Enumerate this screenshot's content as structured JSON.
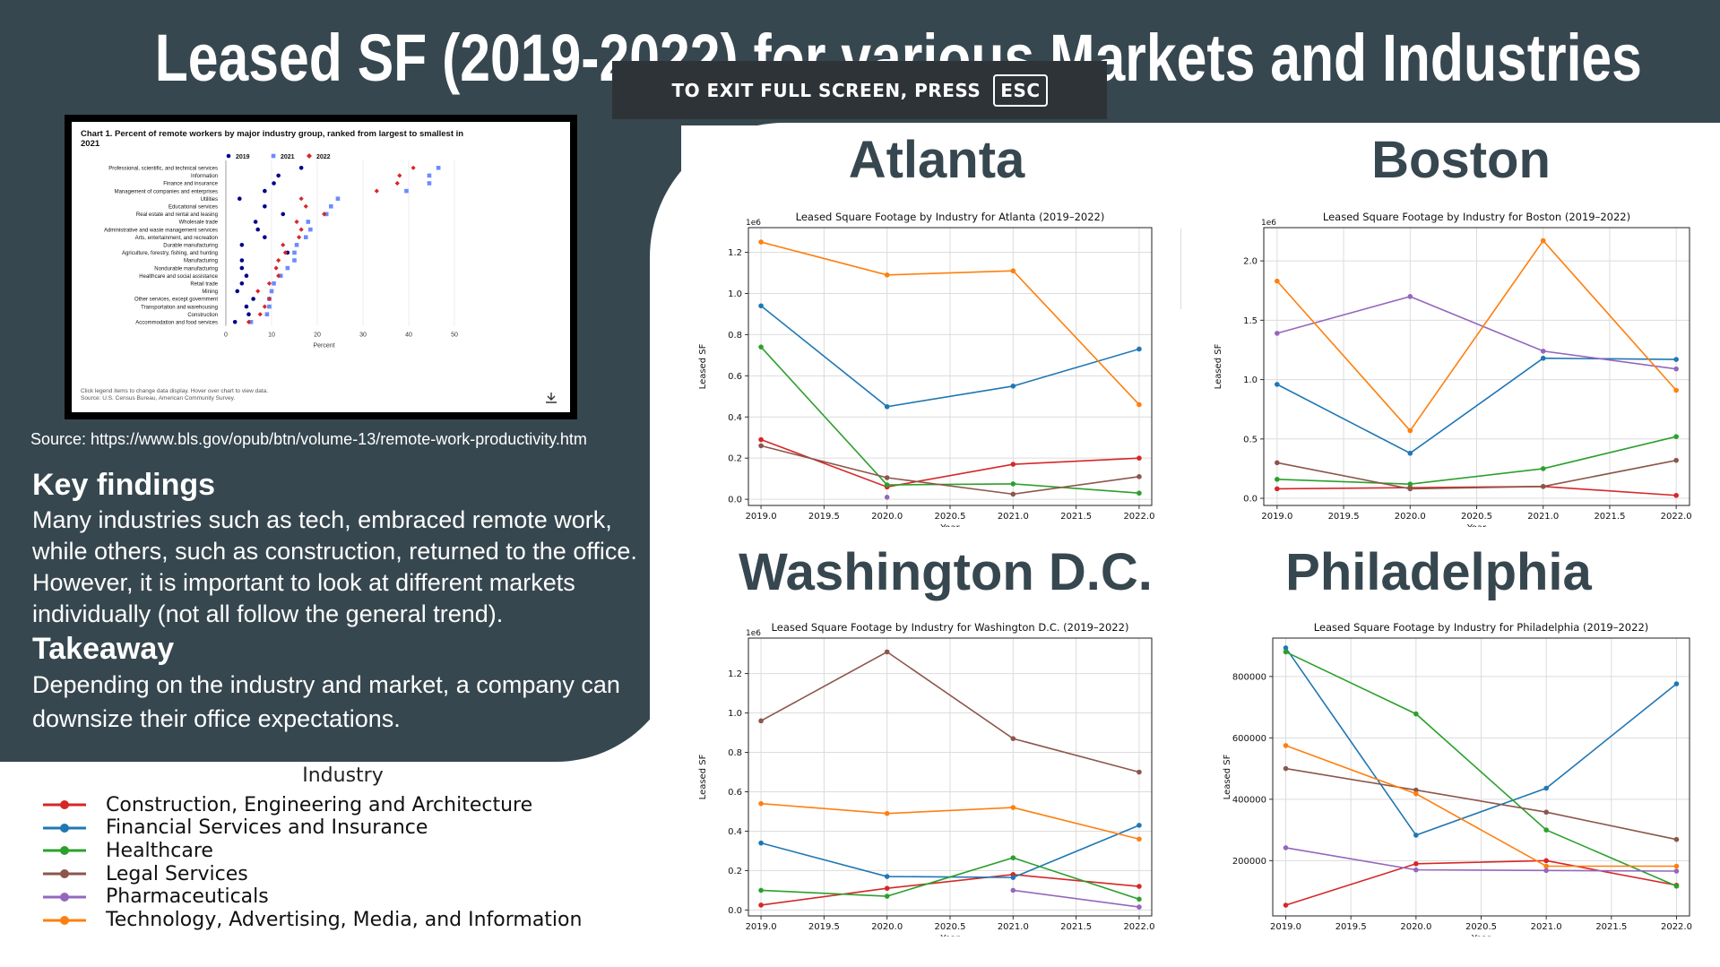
{
  "title": "Leased SF (2019-2022) for various Markets and Industries",
  "fullscreen_notice": {
    "text": "TO EXIT FULL SCREEN, PRESS",
    "key": "ESC"
  },
  "source_text": "Source: https://www.bls.gov/opub/btn/volume-13/remote-work-productivity.htm",
  "key_findings": {
    "heading": "Key findings",
    "text": "Many industries such as tech, embraced remote work, while others, such as construction, returned to the office. However, it is important to look at different markets individually (not all follow the general trend)."
  },
  "takeaway": {
    "heading": "Takeaway",
    "text": "Depending on the industry and market, a company can downsize their office expectations."
  },
  "cities": [
    "Atlanta",
    "Boston",
    "Washington D.C.",
    "Philadelphia"
  ],
  "legend": {
    "title": "Industry",
    "items": [
      {
        "label": "Construction, Engineering and Architecture",
        "color": "#d62728"
      },
      {
        "label": "Financial Services and Insurance",
        "color": "#1f77b4"
      },
      {
        "label": "Healthcare",
        "color": "#2ca02c"
      },
      {
        "label": "Legal Services",
        "color": "#8c564b"
      },
      {
        "label": "Pharmaceuticals",
        "color": "#9467bd"
      },
      {
        "label": "Technology, Advertising, Media, and Information",
        "color": "#ff7f0e"
      }
    ]
  },
  "chart_data": [
    {
      "type": "scatter",
      "title": "Chart 1. Percent of remote workers by major industry group, ranked from largest to smallest in 2021",
      "xlabel": "Percent",
      "xlim": [
        0,
        50
      ],
      "xticks": [
        0,
        10,
        20,
        30,
        40,
        50
      ],
      "categories": [
        "Professional, scientific, and technical services",
        "Information",
        "Finance and insurance",
        "Management of companies and enterprises",
        "Utilities",
        "Educational services",
        "Real estate and rental and leasing",
        "Wholesale trade",
        "Administrative and waste management services",
        "Arts, entertainment, and recreation",
        "Durable manufacturing",
        "Agriculture, forestry, fishing, and hunting",
        "Manufacturing",
        "Nondurable manufacturing",
        "Healthcare and social assistance",
        "Retail trade",
        "Mining",
        "Other services, except government",
        "Transportation and warehousing",
        "Construction",
        "Accommodation and food services"
      ],
      "series": [
        {
          "name": "2019",
          "color": "#00008b",
          "values": [
            16.5,
            11.5,
            10.5,
            8.5,
            3,
            8.5,
            12.5,
            6.5,
            7,
            8.5,
            3.5,
            13.5,
            3.5,
            3.5,
            4.5,
            3.5,
            2.5,
            6,
            4.5,
            5,
            2
          ]
        },
        {
          "name": "2021",
          "color": "#6b8cff",
          "values": [
            46.5,
            44.5,
            44.5,
            39.5,
            24.5,
            23,
            22,
            18,
            18.5,
            17.5,
            15.5,
            15,
            15,
            13.5,
            12,
            10.5,
            10,
            9.5,
            9.5,
            9,
            5.5
          ]
        },
        {
          "name": "2022",
          "color": "#d62728",
          "values": [
            41,
            38,
            37.5,
            33,
            16.5,
            17.5,
            21.5,
            15.5,
            16.5,
            16,
            12.5,
            13,
            11.5,
            11,
            11.5,
            9.5,
            7,
            9.5,
            8.5,
            7.5,
            5
          ]
        }
      ],
      "footnote": "Click legend items to change data display. Hover over chart to view data.",
      "source": "Source: U.S. Census Bureau, American Community Survey."
    },
    {
      "type": "line",
      "title": "Leased Square Footage by Industry for Atlanta (2019–2022)",
      "xlabel": "Year",
      "ylabel": "Leased SF",
      "offset": "1e6",
      "xlim": [
        2018.9,
        2022.1
      ],
      "ylim": [
        -0.03,
        1.32
      ],
      "xticks": [
        "2019.0",
        "2019.5",
        "2020.0",
        "2020.5",
        "2021.0",
        "2021.5",
        "2022.0"
      ],
      "yticks": [
        "0.0",
        "0.2",
        "0.4",
        "0.6",
        "0.8",
        "1.0",
        "1.2"
      ],
      "ytick_values": [
        0,
        0.2,
        0.4,
        0.6,
        0.8,
        1.0,
        1.2
      ],
      "series": [
        {
          "name": "Construction, Engineering and Architecture",
          "color": "#d62728",
          "x": [
            2019,
            2020,
            2021,
            2022
          ],
          "y": [
            0.29,
            0.06,
            0.17,
            0.2
          ]
        },
        {
          "name": "Financial Services and Insurance",
          "color": "#1f77b4",
          "x": [
            2019,
            2020,
            2021,
            2022
          ],
          "y": [
            0.94,
            0.45,
            0.55,
            0.73
          ]
        },
        {
          "name": "Healthcare",
          "color": "#2ca02c",
          "x": [
            2019,
            2020,
            2021,
            2022
          ],
          "y": [
            0.74,
            0.07,
            0.075,
            0.03
          ]
        },
        {
          "name": "Legal Services",
          "color": "#8c564b",
          "x": [
            2019,
            2020,
            2021,
            2022
          ],
          "y": [
            0.26,
            0.105,
            0.025,
            0.11
          ]
        },
        {
          "name": "Pharmaceuticals",
          "color": "#9467bd",
          "x": [
            2020
          ],
          "y": [
            0.01
          ]
        },
        {
          "name": "Technology, Advertising, Media, and Information",
          "color": "#ff7f0e",
          "x": [
            2019,
            2020,
            2021,
            2022
          ],
          "y": [
            1.25,
            1.09,
            1.11,
            0.46
          ]
        }
      ]
    },
    {
      "type": "line",
      "title": "Leased Square Footage by Industry for Boston (2019–2022)",
      "xlabel": "Year",
      "ylabel": "Leased SF",
      "offset": "1e6",
      "xlim": [
        2018.9,
        2022.1
      ],
      "ylim": [
        -0.06,
        2.28
      ],
      "xticks": [
        "2019.0",
        "2019.5",
        "2020.0",
        "2020.5",
        "2021.0",
        "2021.5",
        "2022.0"
      ],
      "yticks": [
        "0.0",
        "0.5",
        "1.0",
        "1.5",
        "2.0"
      ],
      "ytick_values": [
        0,
        0.5,
        1.0,
        1.5,
        2.0
      ],
      "series": [
        {
          "name": "Construction, Engineering and Architecture",
          "color": "#d62728",
          "x": [
            2019,
            2020,
            2021,
            2022
          ],
          "y": [
            0.08,
            0.09,
            0.1,
            0.025
          ]
        },
        {
          "name": "Financial Services and Insurance",
          "color": "#1f77b4",
          "x": [
            2019,
            2020,
            2021,
            2022
          ],
          "y": [
            0.96,
            0.38,
            1.18,
            1.17
          ]
        },
        {
          "name": "Healthcare",
          "color": "#2ca02c",
          "x": [
            2019,
            2020,
            2021,
            2022
          ],
          "y": [
            0.16,
            0.12,
            0.25,
            0.52
          ]
        },
        {
          "name": "Legal Services",
          "color": "#8c564b",
          "x": [
            2019,
            2020,
            2021,
            2022
          ],
          "y": [
            0.3,
            0.08,
            0.1,
            0.32
          ]
        },
        {
          "name": "Pharmaceuticals",
          "color": "#9467bd",
          "x": [
            2019,
            2020,
            2021,
            2022
          ],
          "y": [
            1.39,
            1.7,
            1.24,
            1.09
          ]
        },
        {
          "name": "Technology, Advertising, Media, and Information",
          "color": "#ff7f0e",
          "x": [
            2019,
            2020,
            2021,
            2022
          ],
          "y": [
            1.83,
            0.57,
            2.17,
            0.91
          ]
        }
      ]
    },
    {
      "type": "line",
      "title": "Leased Square Footage by Industry for Washington D.C. (2019–2022)",
      "xlabel": "Year",
      "ylabel": "Leased SF",
      "offset": "1e6",
      "xlim": [
        2018.9,
        2022.1
      ],
      "ylim": [
        -0.03,
        1.38
      ],
      "xticks": [
        "2019.0",
        "2019.5",
        "2020.0",
        "2020.5",
        "2021.0",
        "2021.5",
        "2022.0"
      ],
      "yticks": [
        "0.0",
        "0.2",
        "0.4",
        "0.6",
        "0.8",
        "1.0",
        "1.2"
      ],
      "ytick_values": [
        0,
        0.2,
        0.4,
        0.6,
        0.8,
        1.0,
        1.2
      ],
      "series": [
        {
          "name": "Construction, Engineering and Architecture",
          "color": "#d62728",
          "x": [
            2019,
            2020,
            2021,
            2022
          ],
          "y": [
            0.025,
            0.11,
            0.18,
            0.12
          ]
        },
        {
          "name": "Financial Services and Insurance",
          "color": "#1f77b4",
          "x": [
            2019,
            2020,
            2021,
            2022
          ],
          "y": [
            0.34,
            0.17,
            0.165,
            0.43
          ]
        },
        {
          "name": "Healthcare",
          "color": "#2ca02c",
          "x": [
            2019,
            2020,
            2021,
            2022
          ],
          "y": [
            0.1,
            0.07,
            0.265,
            0.055
          ]
        },
        {
          "name": "Legal Services",
          "color": "#8c564b",
          "x": [
            2019,
            2020,
            2021,
            2022
          ],
          "y": [
            0.96,
            1.31,
            0.87,
            0.7
          ]
        },
        {
          "name": "Pharmaceuticals",
          "color": "#9467bd",
          "x": [
            2021,
            2022
          ],
          "y": [
            0.1,
            0.015
          ]
        },
        {
          "name": "Technology, Advertising, Media, and Information",
          "color": "#ff7f0e",
          "x": [
            2019,
            2020,
            2021,
            2022
          ],
          "y": [
            0.54,
            0.49,
            0.52,
            0.36
          ]
        }
      ]
    },
    {
      "type": "line",
      "title": "Leased Square Footage by Industry for Philadelphia (2019–2022)",
      "xlabel": "Year",
      "ylabel": "Leased SF",
      "xlim": [
        2018.9,
        2022.1
      ],
      "ylim": [
        20000,
        925000
      ],
      "xticks": [
        "2019.0",
        "2019.5",
        "2020.0",
        "2020.5",
        "2021.0",
        "2021.5",
        "2022.0"
      ],
      "yticks": [
        "200000",
        "400000",
        "600000",
        "800000"
      ],
      "ytick_values": [
        200000,
        400000,
        600000,
        800000
      ],
      "series": [
        {
          "name": "Construction, Engineering and Architecture",
          "color": "#d62728",
          "x": [
            2019,
            2020,
            2021,
            2022
          ],
          "y": [
            55000,
            190000,
            200000,
            120000
          ]
        },
        {
          "name": "Financial Services and Insurance",
          "color": "#1f77b4",
          "x": [
            2019,
            2020,
            2021,
            2022
          ],
          "y": [
            893000,
            283000,
            436000,
            776000
          ]
        },
        {
          "name": "Healthcare",
          "color": "#2ca02c",
          "x": [
            2019,
            2020,
            2021,
            2022
          ],
          "y": [
            880000,
            678000,
            300000,
            117000
          ]
        },
        {
          "name": "Legal Services",
          "color": "#8c564b",
          "x": [
            2019,
            2020,
            2021,
            2022
          ],
          "y": [
            500000,
            430000,
            358000,
            269000
          ]
        },
        {
          "name": "Pharmaceuticals",
          "color": "#9467bd",
          "x": [
            2019,
            2020,
            2021,
            2022
          ],
          "y": [
            242000,
            170000,
            168000,
            166000
          ]
        },
        {
          "name": "Technology, Advertising, Media, and Information",
          "color": "#ff7f0e",
          "x": [
            2019,
            2020,
            2021,
            2022
          ],
          "y": [
            575000,
            418000,
            182000,
            182000
          ]
        }
      ]
    }
  ]
}
